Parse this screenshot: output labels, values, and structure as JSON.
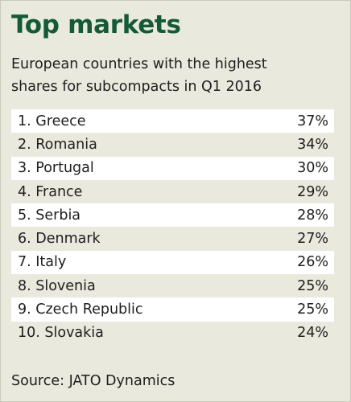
{
  "chart_data": {
    "type": "table",
    "title": "Top markets",
    "subtitle_lines": [
      "European countries with the highest",
      "shares for subcompacts in Q1 2016"
    ],
    "rows": [
      {
        "label": "1. Greece",
        "value": "37%"
      },
      {
        "label": "2. Romania",
        "value": "34%"
      },
      {
        "label": "3. Portugal",
        "value": "30%"
      },
      {
        "label": "4. France",
        "value": "29%"
      },
      {
        "label": "5. Serbia",
        "value": "28%"
      },
      {
        "label": "6. Denmark",
        "value": "27%"
      },
      {
        "label": "7. Italy",
        "value": "26%"
      },
      {
        "label": "8. Slovenia",
        "value": "25%"
      },
      {
        "label": "9. Czech Republic",
        "value": "25%"
      },
      {
        "label": "10. Slovakia",
        "value": "24%"
      }
    ],
    "source": "Source: JATO Dynamics",
    "colors": {
      "background": "#e9e9dd",
      "title": "#145a36",
      "shaded_row": "#ffffff",
      "text": "#1e1e1e"
    }
  }
}
